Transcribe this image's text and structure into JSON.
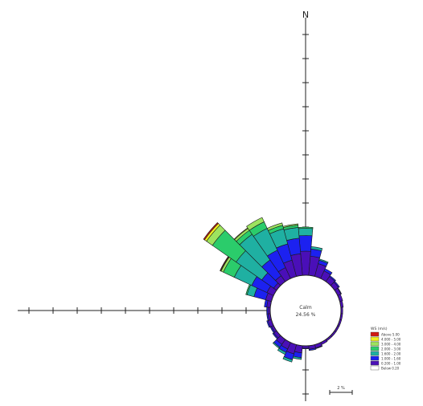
{
  "chart_data": {
    "type": "wind-rose",
    "north_label": "N",
    "calm": {
      "label": "Calm",
      "value_label": "24.56 %",
      "percent": 24.56
    },
    "ring_percent_per_tick": 2,
    "scale_bar_label": "2 %",
    "legend": {
      "title": "WS (m/s)",
      "bins": [
        {
          "label": "Above 5.00",
          "color": "#d11a12"
        },
        {
          "label": "4.000 - 5.00",
          "color": "#f2ef1f"
        },
        {
          "label": "3.000 - 4.00",
          "color": "#9de35f"
        },
        {
          "label": "2.000 - 3.00",
          "color": "#2bcc6b"
        },
        {
          "label": "1.600 - 2.00",
          "color": "#1fb0a2"
        },
        {
          "label": "1.000 - 1.60",
          "color": "#1c21f0"
        },
        {
          "label": "0.200 - 1.00",
          "color": "#4a0fb8"
        },
        {
          "label": "Below 0.20",
          "color": "#ffffff"
        }
      ]
    },
    "directions": [
      {
        "dir": 0,
        "values": [
          2.0,
          1.3,
          0.6,
          0.1,
          0,
          0,
          0,
          0
        ]
      },
      {
        "dir": 10,
        "values": [
          1.6,
          0.6,
          0.2,
          0,
          0,
          0,
          0,
          0
        ]
      },
      {
        "dir": 20,
        "values": [
          1.1,
          0.3,
          0.1,
          0,
          0,
          0,
          0,
          0
        ]
      },
      {
        "dir": 30,
        "values": [
          0.7,
          0.2,
          0,
          0,
          0,
          0,
          0,
          0
        ]
      },
      {
        "dir": 40,
        "values": [
          0.5,
          0.1,
          0,
          0,
          0,
          0,
          0,
          0
        ]
      },
      {
        "dir": 50,
        "values": [
          0.4,
          0.1,
          0,
          0,
          0,
          0,
          0,
          0
        ]
      },
      {
        "dir": 60,
        "values": [
          0.3,
          0.05,
          0,
          0,
          0,
          0,
          0,
          0
        ]
      },
      {
        "dir": 70,
        "values": [
          0.25,
          0,
          0,
          0,
          0,
          0,
          0,
          0
        ]
      },
      {
        "dir": 80,
        "values": [
          0.2,
          0,
          0,
          0,
          0,
          0,
          0,
          0
        ]
      },
      {
        "dir": 90,
        "values": [
          0.15,
          0,
          0,
          0,
          0,
          0,
          0,
          0
        ]
      },
      {
        "dir": 100,
        "values": [
          0.15,
          0,
          0,
          0,
          0,
          0,
          0,
          0
        ]
      },
      {
        "dir": 110,
        "values": [
          0.15,
          0,
          0,
          0,
          0,
          0,
          0,
          0
        ]
      },
      {
        "dir": 120,
        "values": [
          0.15,
          0,
          0,
          0,
          0,
          0,
          0,
          0
        ]
      },
      {
        "dir": 130,
        "values": [
          0.15,
          0,
          0,
          0,
          0,
          0,
          0,
          0
        ]
      },
      {
        "dir": 140,
        "values": [
          0.15,
          0,
          0,
          0,
          0,
          0,
          0,
          0
        ]
      },
      {
        "dir": 150,
        "values": [
          0.2,
          0,
          0,
          0,
          0,
          0,
          0,
          0
        ]
      },
      {
        "dir": 160,
        "values": [
          0.3,
          0.05,
          0,
          0,
          0,
          0,
          0,
          0
        ]
      },
      {
        "dir": 170,
        "values": [
          0.3,
          0.1,
          0,
          0,
          0,
          0,
          0,
          0
        ]
      },
      {
        "dir": 180,
        "values": [
          0.2,
          0.05,
          0,
          0,
          0,
          0,
          0,
          0
        ]
      },
      {
        "dir": 190,
        "values": [
          0.6,
          0.4,
          0.15,
          0,
          0,
          0,
          0,
          0
        ]
      },
      {
        "dir": 200,
        "values": [
          0.8,
          0.5,
          0.2,
          0,
          0,
          0,
          0,
          0
        ]
      },
      {
        "dir": 210,
        "values": [
          0.6,
          0.3,
          0.2,
          0,
          0,
          0,
          0,
          0
        ]
      },
      {
        "dir": 220,
        "values": [
          0.5,
          0.3,
          0.1,
          0,
          0,
          0,
          0,
          0
        ]
      },
      {
        "dir": 230,
        "values": [
          0.3,
          0.1,
          0,
          0,
          0,
          0,
          0,
          0
        ]
      },
      {
        "dir": 240,
        "values": [
          0.2,
          0.1,
          0,
          0,
          0,
          0,
          0,
          0
        ]
      },
      {
        "dir": 250,
        "values": [
          0.3,
          0.1,
          0,
          0,
          0,
          0,
          0,
          0
        ]
      },
      {
        "dir": 260,
        "values": [
          0.2,
          0.1,
          0,
          0,
          0,
          0,
          0,
          0
        ]
      },
      {
        "dir": 270,
        "values": [
          0.2,
          0.1,
          0,
          0,
          0,
          0,
          0,
          0
        ]
      },
      {
        "dir": 280,
        "values": [
          0.3,
          0.2,
          0,
          0,
          0,
          0,
          0,
          0
        ]
      },
      {
        "dir": 290,
        "values": [
          0.5,
          1.0,
          0.6,
          0.1,
          0,
          0,
          0,
          0
        ]
      },
      {
        "dir": 300,
        "values": [
          0.6,
          1.4,
          1.6,
          1.0,
          0.2,
          0.05,
          0.05,
          0
        ]
      },
      {
        "dir": 310,
        "values": [
          0.3,
          1.2,
          2.6,
          2.4,
          0.6,
          0.2,
          0.1,
          0
        ]
      },
      {
        "dir": 320,
        "values": [
          0.6,
          1.6,
          2.6,
          0.4,
          0.2,
          0.05,
          0,
          0
        ]
      },
      {
        "dir": 330,
        "values": [
          1.0,
          1.6,
          2.0,
          0.6,
          0.4,
          0,
          0,
          0
        ]
      },
      {
        "dir": 340,
        "values": [
          1.4,
          1.4,
          1.3,
          0.3,
          0.2,
          0,
          0,
          0
        ]
      },
      {
        "dir": 350,
        "values": [
          1.8,
          1.3,
          0.9,
          0.2,
          0.1,
          0,
          0,
          0
        ]
      }
    ]
  }
}
